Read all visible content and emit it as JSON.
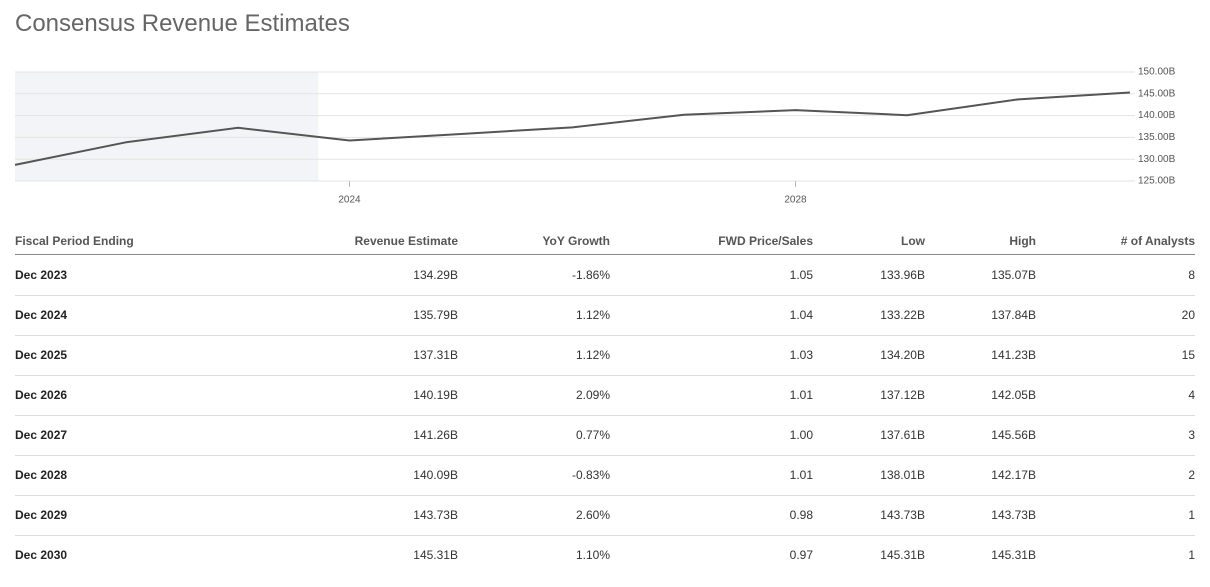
{
  "header": {
    "title": "Consensus Revenue Estimates"
  },
  "chart_data": {
    "type": "line",
    "x": [
      2021,
      2022,
      2023,
      2024,
      2025,
      2026,
      2027,
      2028,
      2029,
      2030,
      2031
    ],
    "series": [
      {
        "color": "#555555",
        "values": [
          128.7,
          133.9,
          137.2,
          134.29,
          135.79,
          137.31,
          140.19,
          141.26,
          140.09,
          143.73,
          145.31
        ]
      }
    ],
    "xlim": [
      2021,
      2031
    ],
    "xticks": [
      2024,
      2028
    ],
    "ylim": [
      125,
      150
    ],
    "yticks": [
      {
        "value": 125,
        "label": "125.00B"
      },
      {
        "value": 130,
        "label": "130.00B"
      },
      {
        "value": 135,
        "label": "135.00B"
      },
      {
        "value": 140,
        "label": "140.00B"
      },
      {
        "value": 145,
        "label": "145.00B"
      },
      {
        "value": 150,
        "label": "150.00B"
      }
    ],
    "grid": true,
    "highlight_range": [
      2021,
      2023.72
    ],
    "highlight_color": "#f3f4f7"
  },
  "table": {
    "columns": [
      "Fiscal Period Ending",
      "Revenue Estimate",
      "YoY Growth",
      "FWD Price/Sales",
      "Low",
      "High",
      "# of Analysts"
    ],
    "rows": [
      [
        "Dec 2023",
        "134.29B",
        "-1.86%",
        "1.05",
        "133.96B",
        "135.07B",
        "8"
      ],
      [
        "Dec 2024",
        "135.79B",
        "1.12%",
        "1.04",
        "133.22B",
        "137.84B",
        "20"
      ],
      [
        "Dec 2025",
        "137.31B",
        "1.12%",
        "1.03",
        "134.20B",
        "141.23B",
        "15"
      ],
      [
        "Dec 2026",
        "140.19B",
        "2.09%",
        "1.01",
        "137.12B",
        "142.05B",
        "4"
      ],
      [
        "Dec 2027",
        "141.26B",
        "0.77%",
        "1.00",
        "137.61B",
        "145.56B",
        "3"
      ],
      [
        "Dec 2028",
        "140.09B",
        "-0.83%",
        "1.01",
        "138.01B",
        "142.17B",
        "2"
      ],
      [
        "Dec 2029",
        "143.73B",
        "2.60%",
        "0.98",
        "143.73B",
        "143.73B",
        "1"
      ],
      [
        "Dec 2030",
        "145.31B",
        "1.10%",
        "0.97",
        "145.31B",
        "145.31B",
        "1"
      ]
    ]
  }
}
